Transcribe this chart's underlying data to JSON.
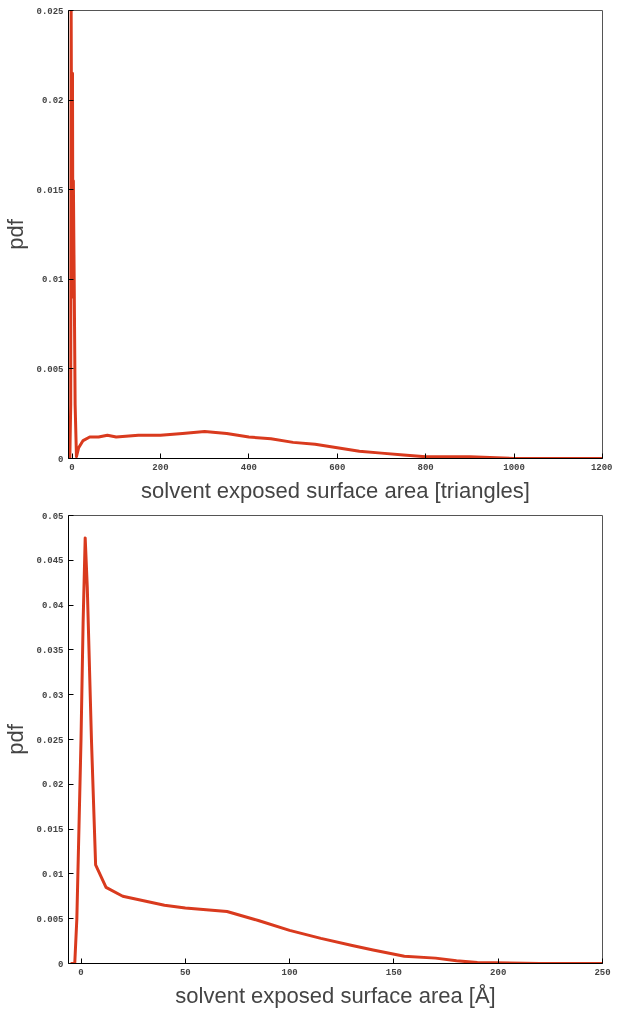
{
  "chart_data": [
    {
      "type": "line",
      "xlabel": "solvent exposed surface area [triangles]",
      "ylabel": "pdf",
      "xlim": [
        -8,
        1200
      ],
      "ylim": [
        0,
        0.025
      ],
      "xticks": [
        0,
        200,
        400,
        600,
        800,
        1000,
        1200
      ],
      "yticks": [
        0,
        0.005,
        0.01,
        0.015,
        0.02,
        0.025
      ],
      "grid": false,
      "series": [
        {
          "color": "#d93a1e",
          "x": [
            -5,
            -3,
            -2,
            0,
            1,
            2,
            3,
            5,
            7,
            10,
            15,
            25,
            40,
            60,
            80,
            100,
            150,
            200,
            250,
            300,
            350,
            400,
            450,
            500,
            550,
            600,
            650,
            700,
            750,
            800,
            850,
            900,
            1000,
            1100,
            1200
          ],
          "values": [
            0,
            0.003,
            0.025,
            0.009,
            0.0215,
            0.0095,
            0.0155,
            0.0095,
            0.003,
            0.0001,
            0.0006,
            0.001,
            0.0012,
            0.0012,
            0.0013,
            0.0012,
            0.0013,
            0.0013,
            0.0014,
            0.0015,
            0.0014,
            0.0012,
            0.0011,
            0.0009,
            0.0008,
            0.0006,
            0.0004,
            0.0003,
            0.0002,
            0.0001,
            0.0001,
            0.0001,
            0,
            0,
            0
          ]
        }
      ]
    },
    {
      "type": "line",
      "xlabel": "solvent exposed surface area [Å]",
      "ylabel": "pdf",
      "xlim": [
        -6,
        250
      ],
      "ylim": [
        0,
        0.05
      ],
      "xticks": [
        0,
        50,
        100,
        150,
        200,
        250
      ],
      "yticks": [
        0,
        0.005,
        0.01,
        0.015,
        0.02,
        0.025,
        0.03,
        0.035,
        0.04,
        0.045,
        0.05
      ],
      "grid": false,
      "series": [
        {
          "color": "#d93a1e",
          "x": [
            -5,
            -3,
            -2,
            0,
            1,
            2,
            3,
            5,
            7,
            12,
            20,
            30,
            40,
            50,
            60,
            70,
            85,
            100,
            115,
            130,
            140,
            155,
            170,
            180,
            190,
            220,
            250
          ],
          "values": [
            0,
            0,
            0.005,
            0.025,
            0.038,
            0.0475,
            0.042,
            0.025,
            0.011,
            0.0085,
            0.0075,
            0.007,
            0.0065,
            0.0062,
            0.006,
            0.0058,
            0.0048,
            0.0037,
            0.0028,
            0.002,
            0.0015,
            0.0008,
            0.0006,
            0.0003,
            0.0001,
            0,
            0
          ]
        }
      ]
    }
  ]
}
